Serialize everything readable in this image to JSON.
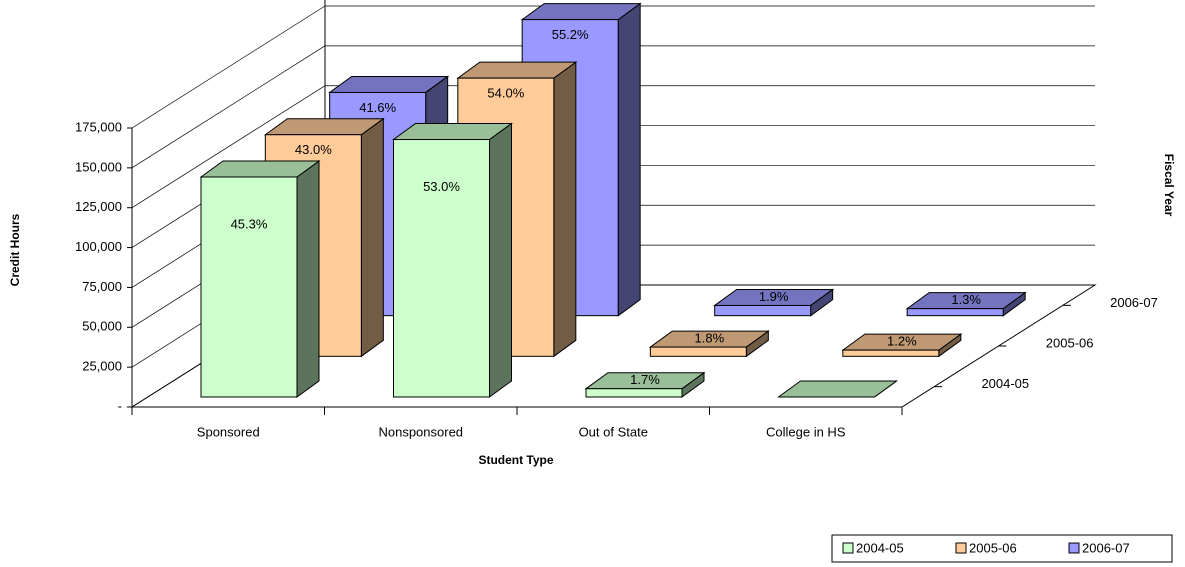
{
  "chart_data": {
    "type": "bar3d",
    "xlabel": "Student Type",
    "ylabel": "Credit Hours",
    "zlabel": "Fiscal Year",
    "categories": [
      "Sponsored",
      "Nonsponsored",
      "Out of State",
      "College in HS"
    ],
    "series": [
      {
        "name": "2004-05",
        "color": "#ccffcc",
        "values": [
          138000,
          161500,
          5200,
          0
        ],
        "share_labels": [
          "45.3%",
          "53.0%",
          "1.7%",
          null
        ]
      },
      {
        "name": "2005-06",
        "color": "#ffcc99",
        "values": [
          139000,
          174500,
          5800,
          3900
        ],
        "share_labels": [
          "43.0%",
          "54.0%",
          "1.8%",
          "1.2%"
        ]
      },
      {
        "name": "2006-07",
        "color": "#9999ff",
        "values": [
          140000,
          185700,
          6400,
          4400
        ],
        "share_labels": [
          "41.6%",
          "55.2%",
          "1.9%",
          "1.3%"
        ]
      }
    ],
    "ylim": [
      0,
      175000
    ],
    "yticks": [
      {
        "value": 0,
        "label": "-"
      },
      {
        "value": 25000,
        "label": "25,000"
      },
      {
        "value": 50000,
        "label": "50,000"
      },
      {
        "value": 75000,
        "label": "75,000"
      },
      {
        "value": 100000,
        "label": "100,000"
      },
      {
        "value": 125000,
        "label": "125,000"
      },
      {
        "value": 150000,
        "label": "150,000"
      },
      {
        "value": 175000,
        "label": "175,000"
      }
    ],
    "grid": true,
    "legend": "bottom-right"
  }
}
